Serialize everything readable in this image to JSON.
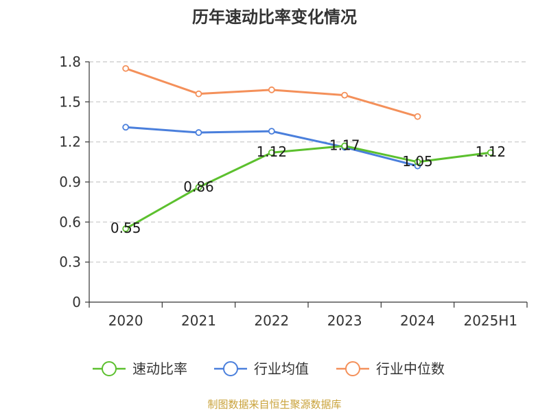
{
  "title": "历年速动比率变化情况",
  "source": "制图数据来自恒生聚源数据库",
  "chart_data": {
    "type": "line",
    "title": "历年速动比率变化情况",
    "categories": [
      "2020",
      "2021",
      "2022",
      "2023",
      "2024",
      "2025H1"
    ],
    "ylim": [
      0,
      1.8
    ],
    "yticks": [
      "0",
      "0.3",
      "0.6",
      "0.9",
      "1.2",
      "1.5",
      "1.8"
    ],
    "grid": true,
    "legend_position": "bottom",
    "series": [
      {
        "name": "速动比率",
        "color": "#5cc02e",
        "values": [
          0.55,
          0.86,
          1.12,
          1.17,
          1.05,
          1.12
        ],
        "labels": [
          "0.55",
          "0.86",
          "1.12",
          "1.17",
          "1.05",
          "1.12"
        ]
      },
      {
        "name": "行业均值",
        "color": "#4a7fdc",
        "values": [
          1.31,
          1.27,
          1.28,
          1.16,
          1.02,
          null
        ]
      },
      {
        "name": "行业中位数",
        "color": "#f4905a",
        "values": [
          1.75,
          1.56,
          1.59,
          1.55,
          1.39,
          null
        ]
      }
    ]
  }
}
